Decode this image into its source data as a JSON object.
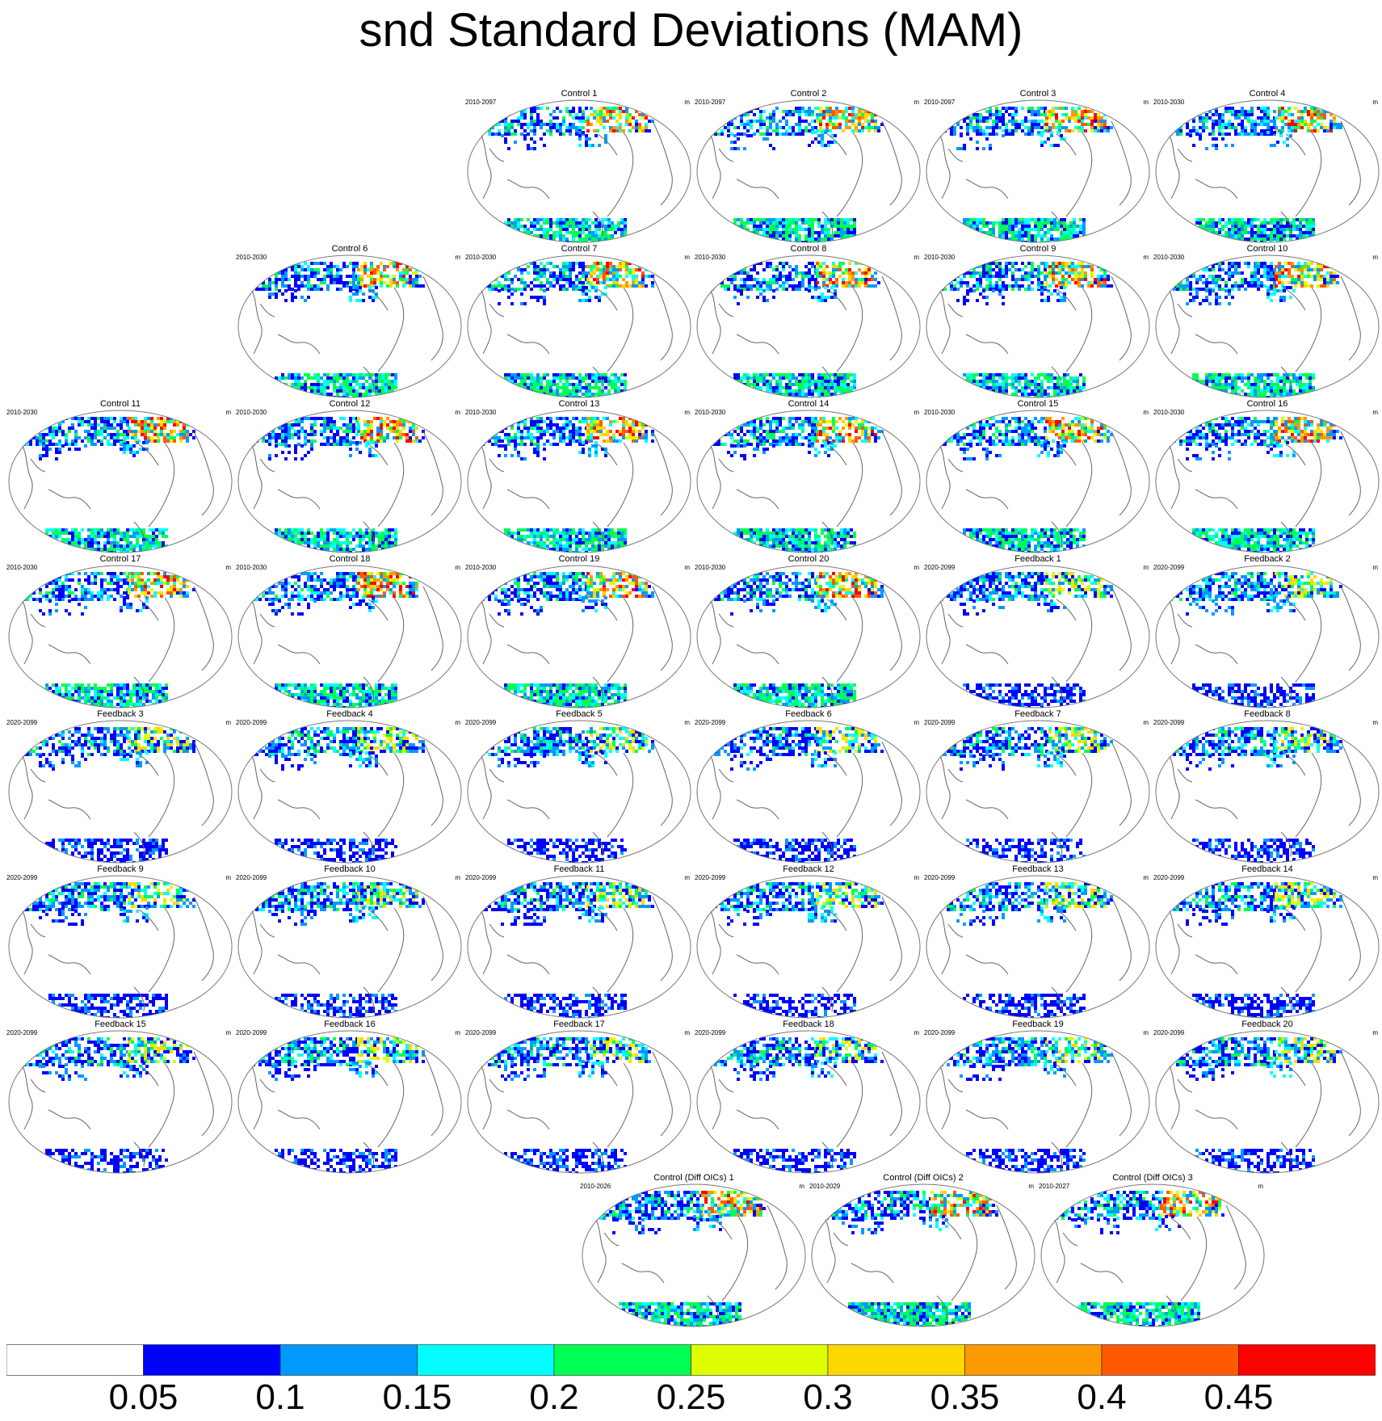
{
  "title": "snd Standard Deviations (MAM)",
  "panels": [
    {
      "title": "Control 1",
      "left": "2010-2097",
      "right": "m",
      "group": "control"
    },
    {
      "title": "Control 2",
      "left": "2010-2097",
      "right": "m",
      "group": "control"
    },
    {
      "title": "Control 3",
      "left": "2010-2097",
      "right": "m",
      "group": "control"
    },
    {
      "title": "Control 4",
      "left": "2010-2030",
      "right": "m",
      "group": "control"
    },
    {
      "title": "Control 6",
      "left": "2010-2030",
      "right": "m",
      "group": "control"
    },
    {
      "title": "Control 7",
      "left": "2010-2030",
      "right": "m",
      "group": "control"
    },
    {
      "title": "Control 8",
      "left": "2010-2030",
      "right": "m",
      "group": "control"
    },
    {
      "title": "Control 9",
      "left": "2010-2030",
      "right": "m",
      "group": "control"
    },
    {
      "title": "Control 10",
      "left": "2010-2030",
      "right": "m",
      "group": "control"
    },
    {
      "title": "Control 11",
      "left": "2010-2030",
      "right": "m",
      "group": "control"
    },
    {
      "title": "Control 12",
      "left": "2010-2030",
      "right": "m",
      "group": "control"
    },
    {
      "title": "Control 13",
      "left": "2010-2030",
      "right": "m",
      "group": "control"
    },
    {
      "title": "Control 14",
      "left": "2010-2030",
      "right": "m",
      "group": "control"
    },
    {
      "title": "Control 15",
      "left": "2010-2030",
      "right": "m",
      "group": "control"
    },
    {
      "title": "Control 16",
      "left": "2010-2030",
      "right": "m",
      "group": "control"
    },
    {
      "title": "Control 17",
      "left": "2010-2030",
      "right": "m",
      "group": "control"
    },
    {
      "title": "Control 18",
      "left": "2010-2030",
      "right": "m",
      "group": "control"
    },
    {
      "title": "Control 19",
      "left": "2010-2030",
      "right": "m",
      "group": "control"
    },
    {
      "title": "Control 20",
      "left": "2010-2030",
      "right": "m",
      "group": "control"
    },
    {
      "title": "Feedback 1",
      "left": "2020-2099",
      "right": "m",
      "group": "feedback"
    },
    {
      "title": "Feedback 2",
      "left": "2020-2099",
      "right": "m",
      "group": "feedback"
    },
    {
      "title": "Feedback 3",
      "left": "2020-2099",
      "right": "m",
      "group": "feedback"
    },
    {
      "title": "Feedback 4",
      "left": "2020-2099",
      "right": "m",
      "group": "feedback"
    },
    {
      "title": "Feedback 5",
      "left": "2020-2099",
      "right": "m",
      "group": "feedback"
    },
    {
      "title": "Feedback 6",
      "left": "2020-2099",
      "right": "m",
      "group": "feedback"
    },
    {
      "title": "Feedback 7",
      "left": "2020-2099",
      "right": "m",
      "group": "feedback"
    },
    {
      "title": "Feedback 8",
      "left": "2020-2099",
      "right": "m",
      "group": "feedback"
    },
    {
      "title": "Feedback 9",
      "left": "2020-2099",
      "right": "m",
      "group": "feedback"
    },
    {
      "title": "Feedback 10",
      "left": "2020-2099",
      "right": "m",
      "group": "feedback"
    },
    {
      "title": "Feedback 11",
      "left": "2020-2099",
      "right": "m",
      "group": "feedback"
    },
    {
      "title": "Feedback 12",
      "left": "2020-2099",
      "right": "m",
      "group": "feedback"
    },
    {
      "title": "Feedback 13",
      "left": "2020-2099",
      "right": "m",
      "group": "feedback"
    },
    {
      "title": "Feedback 14",
      "left": "2020-2099",
      "right": "m",
      "group": "feedback"
    },
    {
      "title": "Feedback 15",
      "left": "2020-2099",
      "right": "m",
      "group": "feedback"
    },
    {
      "title": "Feedback 16",
      "left": "2020-2099",
      "right": "m",
      "group": "feedback"
    },
    {
      "title": "Feedback 17",
      "left": "2020-2099",
      "right": "m",
      "group": "feedback"
    },
    {
      "title": "Feedback 18",
      "left": "2020-2099",
      "right": "m",
      "group": "feedback"
    },
    {
      "title": "Feedback 19",
      "left": "2020-2099",
      "right": "m",
      "group": "feedback"
    },
    {
      "title": "Feedback 20",
      "left": "2020-2099",
      "right": "m",
      "group": "feedback"
    },
    {
      "title": "Control (Diff OICs) 1",
      "left": "2010-2026",
      "right": "m",
      "group": "control"
    },
    {
      "title": "Control (Diff OICs) 2",
      "left": "2010-2029",
      "right": "m",
      "group": "control"
    },
    {
      "title": "Control (Diff OICs) 3",
      "left": "2010-2027",
      "right": "m",
      "group": "control"
    }
  ],
  "colorbar": {
    "labels": [
      "0.05",
      "0.1",
      "0.15",
      "0.2",
      "0.25",
      "0.3",
      "0.35",
      "0.4",
      "0.45"
    ],
    "colors": [
      "#ffffff",
      "#0000ff",
      "#0099ff",
      "#00ffff",
      "#00ff55",
      "#ddff00",
      "#ffd700",
      "#ff9900",
      "#ff5a00",
      "#ff0000"
    ]
  },
  "chart_data": {
    "type": "heatmap",
    "title": "snd Standard Deviations (MAM)",
    "units": "m",
    "levels": [
      0.05,
      0.1,
      0.15,
      0.2,
      0.25,
      0.3,
      0.35,
      0.4,
      0.45
    ],
    "grid": false,
    "legend_placement": "bottom"
  }
}
